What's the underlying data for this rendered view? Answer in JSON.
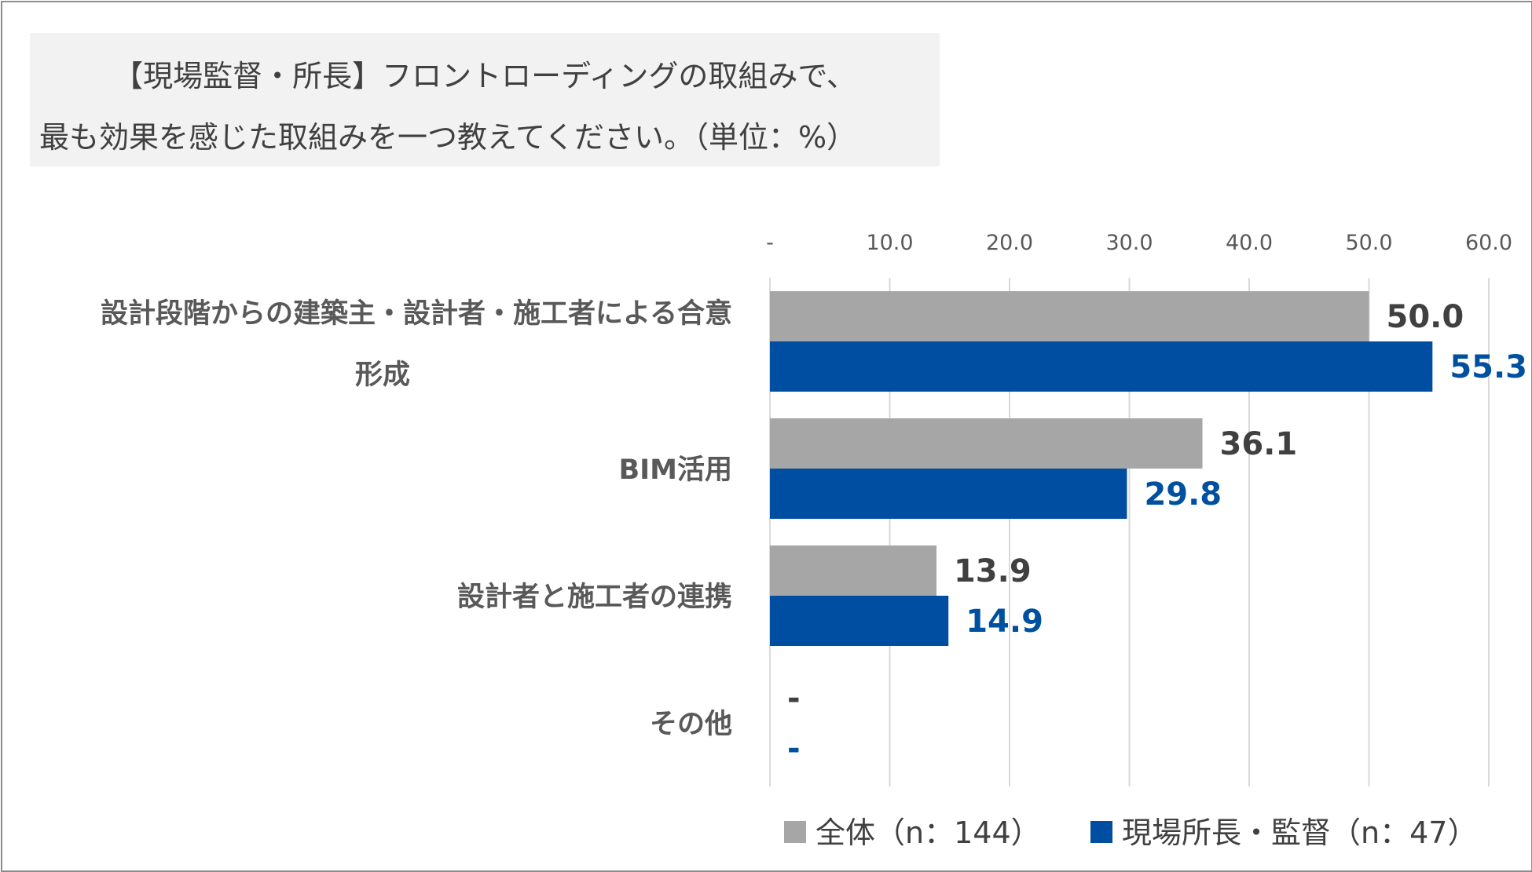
{
  "title": {
    "line1": "【現場監督・所長】フロントローディングの取組みで、",
    "line2": "最も効果を感じた取組みを一つ教えてください。（単位：%）"
  },
  "chart_data": {
    "type": "bar",
    "orientation": "horizontal",
    "categories": [
      [
        "設計段階からの建築主・設計者・施工者による合意",
        "形成"
      ],
      [
        "BIM活用"
      ],
      [
        "設計者と施工者の連携"
      ],
      [
        "その他"
      ]
    ],
    "series": [
      {
        "name": "全体（n：144）",
        "color": "#a6a6a6",
        "label_color": "#404040",
        "values": [
          50.0,
          36.1,
          13.9,
          null
        ],
        "labels": [
          "50.0",
          "36.1",
          "13.9",
          "-"
        ]
      },
      {
        "name": "現場所長・監督（n：47）",
        "color": "#004ea2",
        "label_color": "#0050a0",
        "values": [
          55.3,
          29.8,
          14.9,
          null
        ],
        "labels": [
          "55.3",
          "29.8",
          "14.9",
          "-"
        ]
      }
    ],
    "xlim": [
      0,
      60
    ],
    "ticks": [
      0,
      10,
      20,
      30,
      40,
      50,
      60
    ],
    "tick_labels": [
      "-",
      "10.0",
      "20.0",
      "30.0",
      "40.0",
      "50.0",
      "60.0"
    ],
    "axis_position": "top",
    "grid": true,
    "legend_position": "bottom"
  }
}
